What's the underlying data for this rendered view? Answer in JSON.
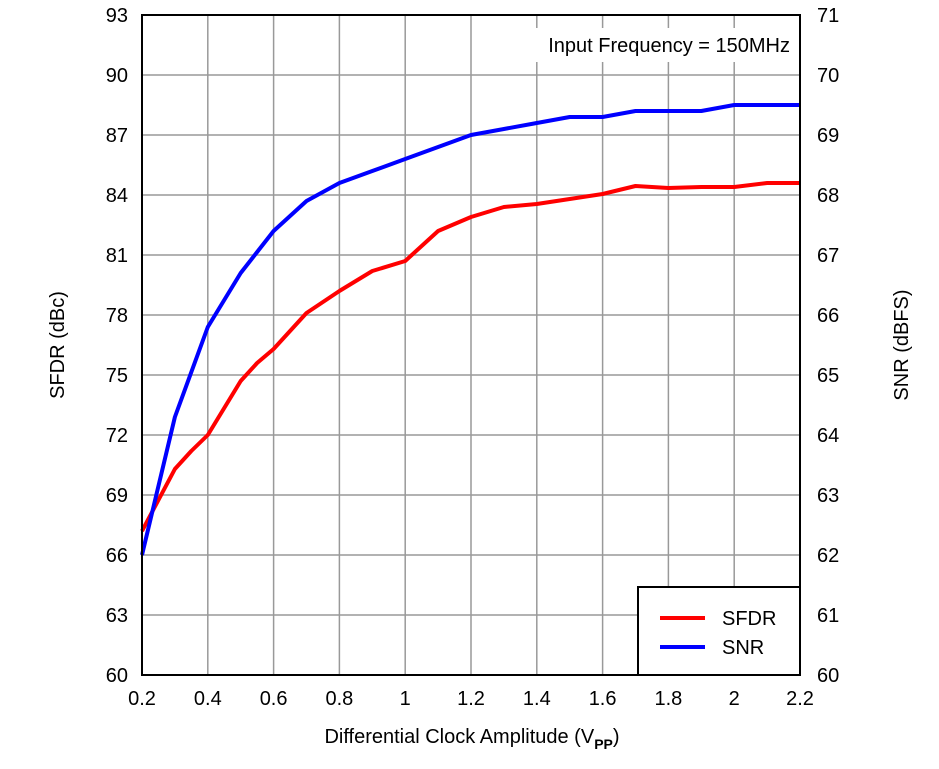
{
  "chart_data": {
    "type": "line",
    "annotation": "Input Frequency = 150MHz",
    "xlabel": "Differential Clock Amplitude (V",
    "xlabel_subscript": "PP",
    "xlabel_close": ")",
    "ylabel_left": "SFDR (dBc)",
    "ylabel_right": "SNR (dBFS)",
    "xlim": [
      0.2,
      2.2
    ],
    "ylim_left": [
      60,
      93
    ],
    "ylim_right": [
      60,
      71
    ],
    "x_ticks": [
      "0.2",
      "0.4",
      "0.6",
      "0.8",
      "1",
      "1.2",
      "1.4",
      "1.6",
      "1.8",
      "2",
      "2.2"
    ],
    "y_ticks_left": [
      "60",
      "63",
      "66",
      "69",
      "72",
      "75",
      "78",
      "81",
      "84",
      "87",
      "90",
      "93"
    ],
    "y_ticks_right": [
      "60",
      "61",
      "62",
      "63",
      "64",
      "65",
      "66",
      "67",
      "68",
      "69",
      "70",
      "71"
    ],
    "grid": true,
    "legend_position": "bottom-right",
    "series": [
      {
        "name": "SFDR",
        "axis": "left",
        "color": "#ff0000",
        "x": [
          0.2,
          0.3,
          0.35,
          0.4,
          0.5,
          0.55,
          0.6,
          0.7,
          0.8,
          0.9,
          1.0,
          1.1,
          1.2,
          1.3,
          1.4,
          1.5,
          1.6,
          1.7,
          1.8,
          1.9,
          2.0,
          2.1,
          2.2
        ],
        "y": [
          67.2,
          70.3,
          71.2,
          72.0,
          74.7,
          75.6,
          76.3,
          78.1,
          79.2,
          80.2,
          80.7,
          82.2,
          82.9,
          83.4,
          83.55,
          83.8,
          84.05,
          84.45,
          84.35,
          84.4,
          84.4,
          84.6,
          84.6
        ]
      },
      {
        "name": "SNR",
        "axis": "right",
        "color": "#0000ff",
        "x": [
          0.2,
          0.3,
          0.4,
          0.5,
          0.6,
          0.7,
          0.8,
          0.9,
          1.0,
          1.1,
          1.2,
          1.3,
          1.4,
          1.5,
          1.6,
          1.7,
          1.8,
          1.9,
          2.0,
          2.1,
          2.2
        ],
        "y": [
          62.0,
          64.3,
          65.8,
          66.7,
          67.4,
          67.9,
          68.2,
          68.4,
          68.6,
          68.8,
          69.0,
          69.1,
          69.2,
          69.3,
          69.3,
          69.4,
          69.4,
          69.4,
          69.5,
          69.5,
          69.5
        ]
      }
    ]
  }
}
